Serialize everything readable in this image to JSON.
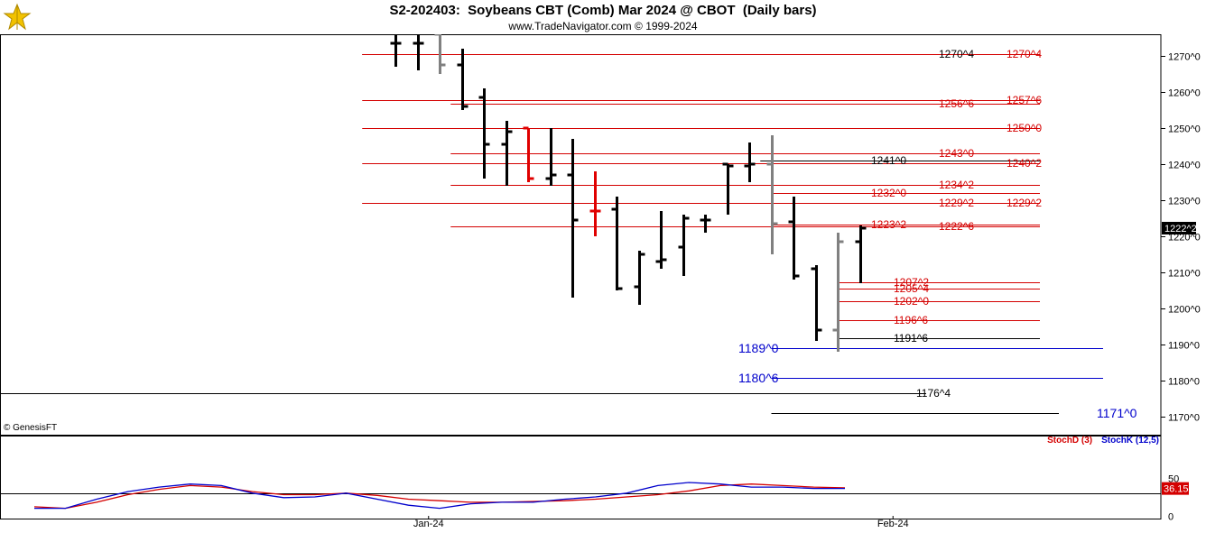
{
  "header": {
    "title": "S2-202403:  Soybeans CBT (Comb) Mar 2024 @ CBOT  (Daily bars)",
    "subtitle": "www.TradeNavigator.com © 1999-2024",
    "copyright": "© GenesisFT"
  },
  "colors": {
    "up_bar": "#000000",
    "down_bar": "#808080",
    "highlight_bar": "#e00000",
    "red_level": "#d40000",
    "blue_level": "#0000cc",
    "black_level": "#000000",
    "stoch_d": "#d40000",
    "stoch_k": "#0000cc",
    "last_price_tag": "#000000"
  },
  "chart_data": [
    {
      "type": "ohlc",
      "ylim": [
        1165,
        1276
      ],
      "y_ticks": [
        "1270^0",
        "1260^0",
        "1250^0",
        "1240^0",
        "1230^0",
        "1220^0",
        "1210^0",
        "1200^0",
        "1190^0",
        "1180^0",
        "1170^0"
      ],
      "y_tick_values": [
        1270,
        1260,
        1250,
        1240,
        1230,
        1220,
        1210,
        1200,
        1190,
        1180,
        1170
      ],
      "x_labels": [
        {
          "label": "Jan-24",
          "bar": 1.5
        },
        {
          "label": "Feb-24",
          "bar": 22.5
        }
      ],
      "last_price_label": "1222^2",
      "last_price": 1222.25,
      "bars": [
        {
          "o": 1273.5,
          "h": 1276,
          "l": 1267,
          "c": 1273.5,
          "color": "up"
        },
        {
          "o": 1273.5,
          "h": 1276,
          "l": 1266,
          "c": 1273.5,
          "color": "up"
        },
        {
          "o": 1276,
          "h": 1276,
          "l": 1265,
          "c": 1267.5,
          "color": "down"
        },
        {
          "o": 1267.5,
          "h": 1272,
          "l": 1255,
          "c": 1256,
          "color": "up"
        },
        {
          "o": 1258.5,
          "h": 1261,
          "l": 1236,
          "c": 1245.5,
          "color": "up"
        },
        {
          "o": 1245.5,
          "h": 1252,
          "l": 1234,
          "c": 1249,
          "color": "up"
        },
        {
          "o": 1250,
          "h": 1250,
          "l": 1235,
          "c": 1236,
          "color": "highlight"
        },
        {
          "o": 1236,
          "h": 1250,
          "l": 1234,
          "c": 1237,
          "color": "up"
        },
        {
          "o": 1237,
          "h": 1247,
          "l": 1203,
          "c": 1224.5,
          "color": "up"
        },
        {
          "o": 1227,
          "h": 1238,
          "l": 1220,
          "c": 1227,
          "color": "highlight"
        },
        {
          "o": 1227.5,
          "h": 1231,
          "l": 1205,
          "c": 1205.5,
          "color": "up"
        },
        {
          "o": 1206,
          "h": 1216,
          "l": 1201,
          "c": 1215,
          "color": "up"
        },
        {
          "o": 1213,
          "h": 1227,
          "l": 1211,
          "c": 1213.5,
          "color": "up"
        },
        {
          "o": 1217,
          "h": 1226,
          "l": 1209,
          "c": 1225,
          "color": "up"
        },
        {
          "o": 1224.5,
          "h": 1226,
          "l": 1221,
          "c": 1224.5,
          "color": "up"
        },
        {
          "o": 1240,
          "h": 1240,
          "l": 1226,
          "c": 1239.5,
          "color": "up"
        },
        {
          "o": 1239.5,
          "h": 1246,
          "l": 1235,
          "c": 1240,
          "color": "up"
        },
        {
          "o": 1240,
          "h": 1248,
          "l": 1215,
          "c": 1223.5,
          "color": "down"
        },
        {
          "o": 1224,
          "h": 1231,
          "l": 1208,
          "c": 1209,
          "color": "up"
        },
        {
          "o": 1211,
          "h": 1212,
          "l": 1191,
          "c": 1194,
          "color": "up"
        },
        {
          "o": 1194,
          "h": 1221,
          "l": 1188,
          "c": 1218.5,
          "color": "down"
        },
        {
          "o": 1218.5,
          "h": 1223,
          "l": 1207,
          "c": 1222.25,
          "color": "up"
        }
      ],
      "levels": [
        {
          "value": 1270.5,
          "label": "1270^4",
          "color": "black",
          "from_bar": -1.5,
          "to_bar": 12
        },
        {
          "value": 1270.5,
          "label": "1270^4",
          "color": "red",
          "from_bar": -1.5,
          "to_bar": 12
        },
        {
          "value": 1257.75,
          "label": "1257^6",
          "color": "red",
          "from_bar": -1.5,
          "to_bar": 12
        },
        {
          "value": 1256.75,
          "label": "1256^6",
          "color": "red",
          "from_bar": 2.5,
          "to_bar": 12
        },
        {
          "value": 1250,
          "label": "1250^0",
          "color": "red",
          "from_bar": -1.5,
          "to_bar": 12
        },
        {
          "value": 1243,
          "label": "1243^0",
          "color": "red",
          "from_bar": 2.5,
          "to_bar": 12
        },
        {
          "value": 1241,
          "label": "1241^0",
          "color": "black",
          "from_bar": 16.5,
          "to_bar": 12
        },
        {
          "value": 1240.25,
          "label": "1240^2",
          "color": "red",
          "from_bar": -1.5,
          "to_bar": 12
        },
        {
          "value": 1234.25,
          "label": "1234^2",
          "color": "red",
          "from_bar": 2.5,
          "to_bar": 12
        },
        {
          "value": 1232,
          "label": "1232^0",
          "color": "red",
          "from_bar": 17,
          "to_bar": 12
        },
        {
          "value": 1229.25,
          "label": "1229^2",
          "color": "red",
          "from_bar": -1.5,
          "to_bar": 12
        },
        {
          "value": 1229.25,
          "label": "1229^2",
          "color": "red",
          "from_bar": -1.5,
          "to_bar": 12
        },
        {
          "value": 1223.25,
          "label": "1223^2",
          "color": "red",
          "from_bar": 17,
          "to_bar": 12
        },
        {
          "value": 1222.75,
          "label": "1222^6",
          "color": "red",
          "from_bar": 2.5,
          "to_bar": 12
        },
        {
          "value": 1207.25,
          "label": "1207^2",
          "color": "red",
          "from_bar": 20,
          "to_bar": 12
        },
        {
          "value": 1205.5,
          "label": "1205^4",
          "color": "red",
          "from_bar": 20,
          "to_bar": 12
        },
        {
          "value": 1202,
          "label": "1202^0",
          "color": "red",
          "from_bar": 20,
          "to_bar": 12
        },
        {
          "value": 1196.75,
          "label": "1196^6",
          "color": "red",
          "from_bar": 20,
          "to_bar": 12
        },
        {
          "value": 1191.75,
          "label": "1191^6",
          "color": "black",
          "from_bar": 20,
          "to_bar": 12
        },
        {
          "value": 1189,
          "label": "1189^0",
          "color": "blue",
          "from_bar": 17,
          "to_bar": 32
        },
        {
          "value": 1180.75,
          "label": "1180^6",
          "color": "blue",
          "from_bar": 17,
          "to_bar": 32
        },
        {
          "value": 1176.5,
          "label": "1176^4",
          "color": "black",
          "from_bar": -18,
          "to_bar": 24
        },
        {
          "value": 1171,
          "label": "1171^0",
          "color": "black",
          "from_bar": 17,
          "to_bar": 30
        }
      ]
    },
    {
      "type": "line",
      "title": "StochD (3)   StochK (12,5)",
      "ylim": [
        0,
        100
      ],
      "y_ticks": [
        "50",
        "0"
      ],
      "y_tick_values": [
        50,
        0
      ],
      "last_value_label": "36.15",
      "last_value": 36.15,
      "series": [
        {
          "name": "StochD (3)",
          "color": "red",
          "values": [
            12,
            10,
            18,
            28,
            35,
            40,
            38,
            32,
            28,
            28,
            30,
            27,
            22,
            20,
            18,
            18,
            19,
            20,
            22,
            25,
            28,
            33,
            40,
            42,
            40,
            38,
            37
          ]
        },
        {
          "name": "StochK (12,5)",
          "color": "blue",
          "values": [
            10,
            10,
            22,
            32,
            38,
            42,
            40,
            30,
            24,
            25,
            30,
            22,
            14,
            10,
            16,
            18,
            18,
            22,
            25,
            30,
            40,
            44,
            42,
            38,
            38,
            36.15,
            36.15
          ]
        }
      ]
    }
  ]
}
